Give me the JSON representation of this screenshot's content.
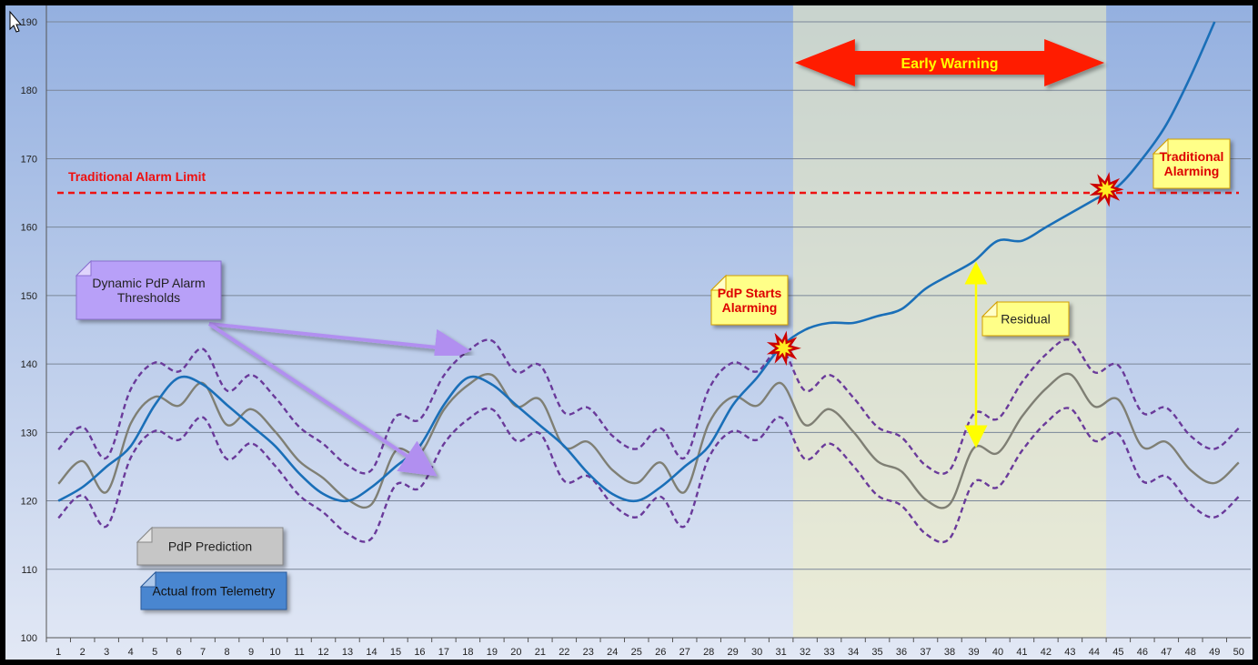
{
  "chart_data": {
    "type": "line",
    "title": "",
    "xlabel": "",
    "ylabel": "",
    "grid": true,
    "xlim": [
      1,
      50
    ],
    "ylim": [
      100,
      190
    ],
    "x": [
      1,
      2,
      3,
      4,
      5,
      6,
      7,
      8,
      9,
      10,
      11,
      12,
      13,
      14,
      15,
      16,
      17,
      18,
      19,
      20,
      21,
      22,
      23,
      24,
      25,
      26,
      27,
      28,
      29,
      30,
      31,
      32,
      33,
      34,
      35,
      36,
      37,
      38,
      39,
      40,
      41,
      42,
      43,
      44,
      45,
      46,
      47,
      48,
      49,
      50
    ],
    "yticks": [
      100,
      110,
      120,
      130,
      140,
      150,
      160,
      170,
      180,
      190
    ],
    "series": [
      {
        "name": "Actual from Telemetry",
        "color": "#1a6fb8",
        "style": "solid",
        "values": [
          120,
          122,
          125,
          128,
          134,
          138,
          137,
          134,
          131,
          128,
          124,
          121,
          120,
          122,
          125,
          128,
          134,
          138,
          137,
          134,
          131,
          128,
          124,
          121,
          120,
          122,
          125,
          128,
          134,
          138,
          142.5,
          145,
          146,
          146,
          147,
          148,
          151,
          153,
          155,
          158,
          158,
          160,
          162,
          164,
          166,
          170,
          175,
          182,
          190,
          null
        ]
      },
      {
        "name": "PdP Prediction",
        "color": "#7f7f74",
        "style": "solid",
        "values": [
          122.5,
          125.8,
          121.3,
          131.3,
          135.2,
          133.9,
          137.2,
          131.1,
          133.4,
          130.1,
          125.8,
          123.3,
          120.2,
          119.5,
          127.3,
          126.9,
          133.3,
          136.9,
          138.4,
          133.8,
          134.8,
          127.9,
          128.6,
          124.5,
          122.6,
          125.6,
          121.3,
          131.3,
          135.2,
          133.9,
          137.2,
          131.1,
          133.4,
          130.1,
          125.8,
          124.3,
          120.2,
          119.5,
          127.7,
          127,
          132.3,
          136.4,
          138.5,
          133.8,
          134.8,
          127.9,
          128.6,
          124.5,
          122.6,
          125.6
        ]
      },
      {
        "name": "Dynamic PdP Alarm Thresholds (upper)",
        "color": "#6a3a9a",
        "style": "dashed",
        "values": [
          127.5,
          130.8,
          126.3,
          136.3,
          140.2,
          138.9,
          142.2,
          136.1,
          138.4,
          135.1,
          130.8,
          128.3,
          125.2,
          124.5,
          132.3,
          131.9,
          138.3,
          141.9,
          143.4,
          138.8,
          139.8,
          132.9,
          133.6,
          129.5,
          127.6,
          130.6,
          126.3,
          136.3,
          140.2,
          138.9,
          142.2,
          136.1,
          138.4,
          135.1,
          130.8,
          129.3,
          125.2,
          124.5,
          132.7,
          132,
          137.3,
          141.4,
          143.5,
          138.8,
          139.8,
          132.9,
          133.6,
          129.5,
          127.6,
          130.6
        ]
      },
      {
        "name": "Dynamic PdP Alarm Thresholds (lower)",
        "color": "#6a3a9a",
        "style": "dashed",
        "values": [
          117.5,
          120.8,
          116.3,
          126.3,
          130.2,
          128.9,
          132.2,
          126.1,
          128.4,
          125.1,
          120.8,
          118.3,
          115.2,
          114.5,
          122.3,
          121.9,
          128.3,
          131.9,
          133.4,
          128.8,
          129.8,
          122.9,
          123.6,
          119.5,
          117.6,
          120.6,
          116.3,
          126.3,
          130.2,
          128.9,
          132.2,
          126.1,
          128.4,
          125.1,
          120.8,
          119.3,
          115.2,
          114.5,
          122.7,
          122,
          127.3,
          131.4,
          133.5,
          128.8,
          129.8,
          122.9,
          123.6,
          119.5,
          117.6,
          120.6
        ]
      }
    ],
    "alarm_limit": {
      "label": "Traditional Alarm Limit",
      "value": 165,
      "color": "#ee1111"
    },
    "early_warning_region": {
      "x_start": 31.5,
      "x_end": 44.5,
      "label": "Early Warning"
    },
    "annotations": {
      "pdp_starts": "PdP Starts Alarming",
      "traditional": "Traditional Alarming",
      "residual": "Residual",
      "thresholds": "Dynamic PdP Alarm Thresholds",
      "prediction": "PdP Prediction",
      "actual": "Actual from Telemetry"
    },
    "colors": {
      "background_top": "#94b0e0",
      "background_bottom": "#e2e8f5",
      "band_fill": "#f4f0c0",
      "note_yellow": "#ffff88",
      "note_text_red": "#dd0000",
      "note_purple": "#b8a0f8",
      "note_gray": "#c6c6c6",
      "note_blue": "#4a86d0",
      "arrow_red": "#ff1a00",
      "arrow_text": "#ffff00",
      "residual_arrow": "#ffff00"
    }
  }
}
